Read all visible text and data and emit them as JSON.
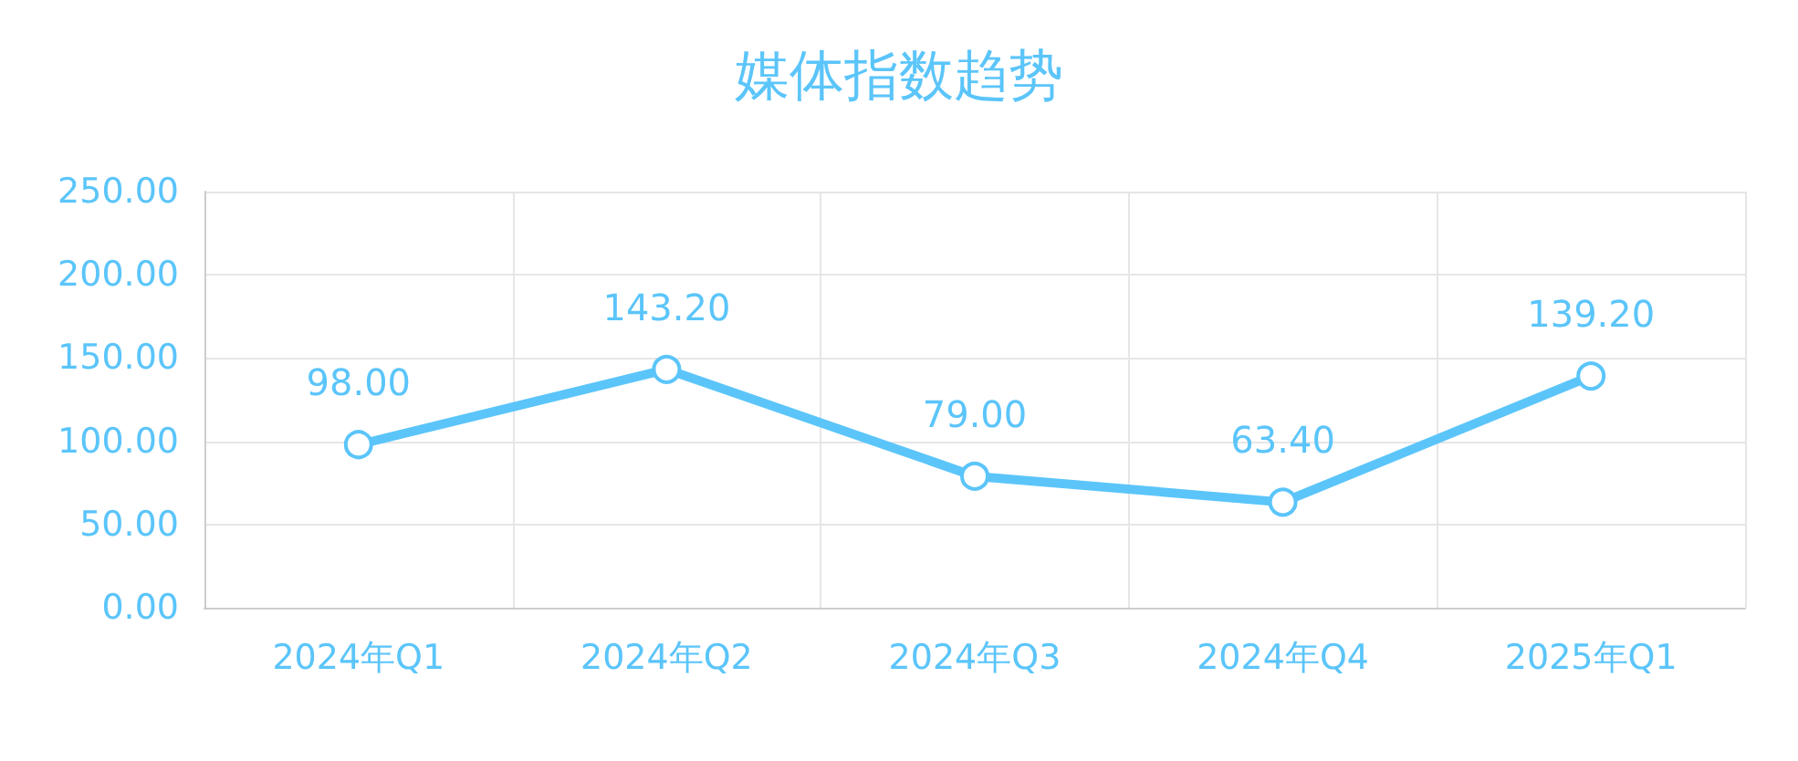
{
  "chart_data": {
    "type": "line",
    "title": "媒体指数趋势",
    "categories": [
      "2024年Q1",
      "2024年Q2",
      "2024年Q3",
      "2024年Q4",
      "2025年Q1"
    ],
    "values": [
      98.0,
      143.2,
      79.0,
      63.4,
      139.2
    ],
    "value_labels": [
      "98.00",
      "143.20",
      "79.00",
      "63.40",
      "139.20"
    ],
    "color": "#5bc5fa",
    "ylim": [
      0,
      250
    ],
    "yticks": [
      {
        "value": 0,
        "label": "0.00"
      },
      {
        "value": 50,
        "label": "50.00"
      },
      {
        "value": 100,
        "label": "100.00"
      },
      {
        "value": 150,
        "label": "150.00"
      },
      {
        "value": 200,
        "label": "200.00"
      },
      {
        "value": 250,
        "label": "250.00"
      }
    ],
    "grid": true,
    "marker": "circle",
    "line_style": "solid"
  }
}
